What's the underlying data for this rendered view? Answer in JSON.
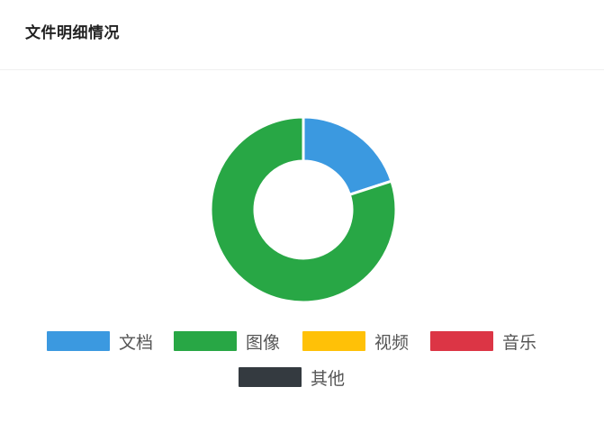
{
  "card": {
    "title": "文件明细情况"
  },
  "chart_data": {
    "type": "pie",
    "variant": "doughnut",
    "title": "",
    "series": [
      {
        "name": "",
        "values": [
          {
            "label": "文档",
            "value": 20,
            "color": "#3b99e0"
          },
          {
            "label": "图像",
            "value": 80,
            "color": "#28a745"
          },
          {
            "label": "视频",
            "value": 0,
            "color": "#ffc107"
          },
          {
            "label": "音乐",
            "value": 0,
            "color": "#dc3545"
          },
          {
            "label": "其他",
            "value": 0,
            "color": "#343a40"
          }
        ]
      }
    ],
    "legend_position": "bottom"
  }
}
